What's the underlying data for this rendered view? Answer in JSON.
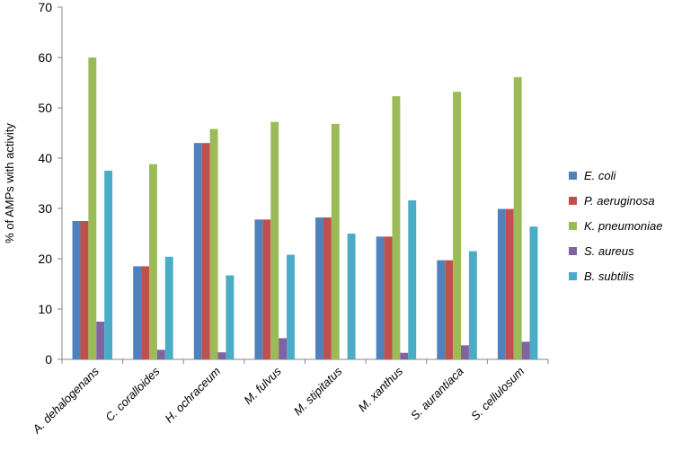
{
  "chart_data": {
    "type": "bar",
    "title": "",
    "xlabel": "",
    "ylabel": "% of AMPs with activity",
    "ylim": [
      0,
      70
    ],
    "yticks": [
      0,
      10,
      20,
      30,
      40,
      50,
      60,
      70
    ],
    "grid": false,
    "legend_position": "right",
    "categories": [
      "A. dehalogenans",
      "C. coralloides",
      "H. ochraceum",
      "M. fulvus",
      "M. stipitatus",
      "M. xanthus",
      "S. aurantiaca",
      "S. cellulosum"
    ],
    "series": [
      {
        "name": "E. coli",
        "color": "#4F81BD",
        "values": [
          27.5,
          18.5,
          43.0,
          27.8,
          28.2,
          24.4,
          19.7,
          29.9
        ]
      },
      {
        "name": "P. aeruginosa",
        "color": "#C0504D",
        "values": [
          27.5,
          18.5,
          43.0,
          27.8,
          28.2,
          24.4,
          19.7,
          29.9
        ]
      },
      {
        "name": "K. pneumoniae",
        "color": "#9BBB59",
        "values": [
          60.0,
          38.8,
          45.8,
          47.2,
          46.8,
          52.3,
          53.2,
          56.1
        ]
      },
      {
        "name": "S. aureus",
        "color": "#8064A2",
        "values": [
          7.5,
          1.9,
          1.4,
          4.2,
          0,
          1.3,
          2.8,
          3.5
        ]
      },
      {
        "name": "B. subtilis",
        "color": "#4BACC6",
        "values": [
          37.5,
          20.4,
          16.7,
          20.8,
          25.0,
          31.6,
          21.5,
          26.4
        ]
      }
    ]
  }
}
